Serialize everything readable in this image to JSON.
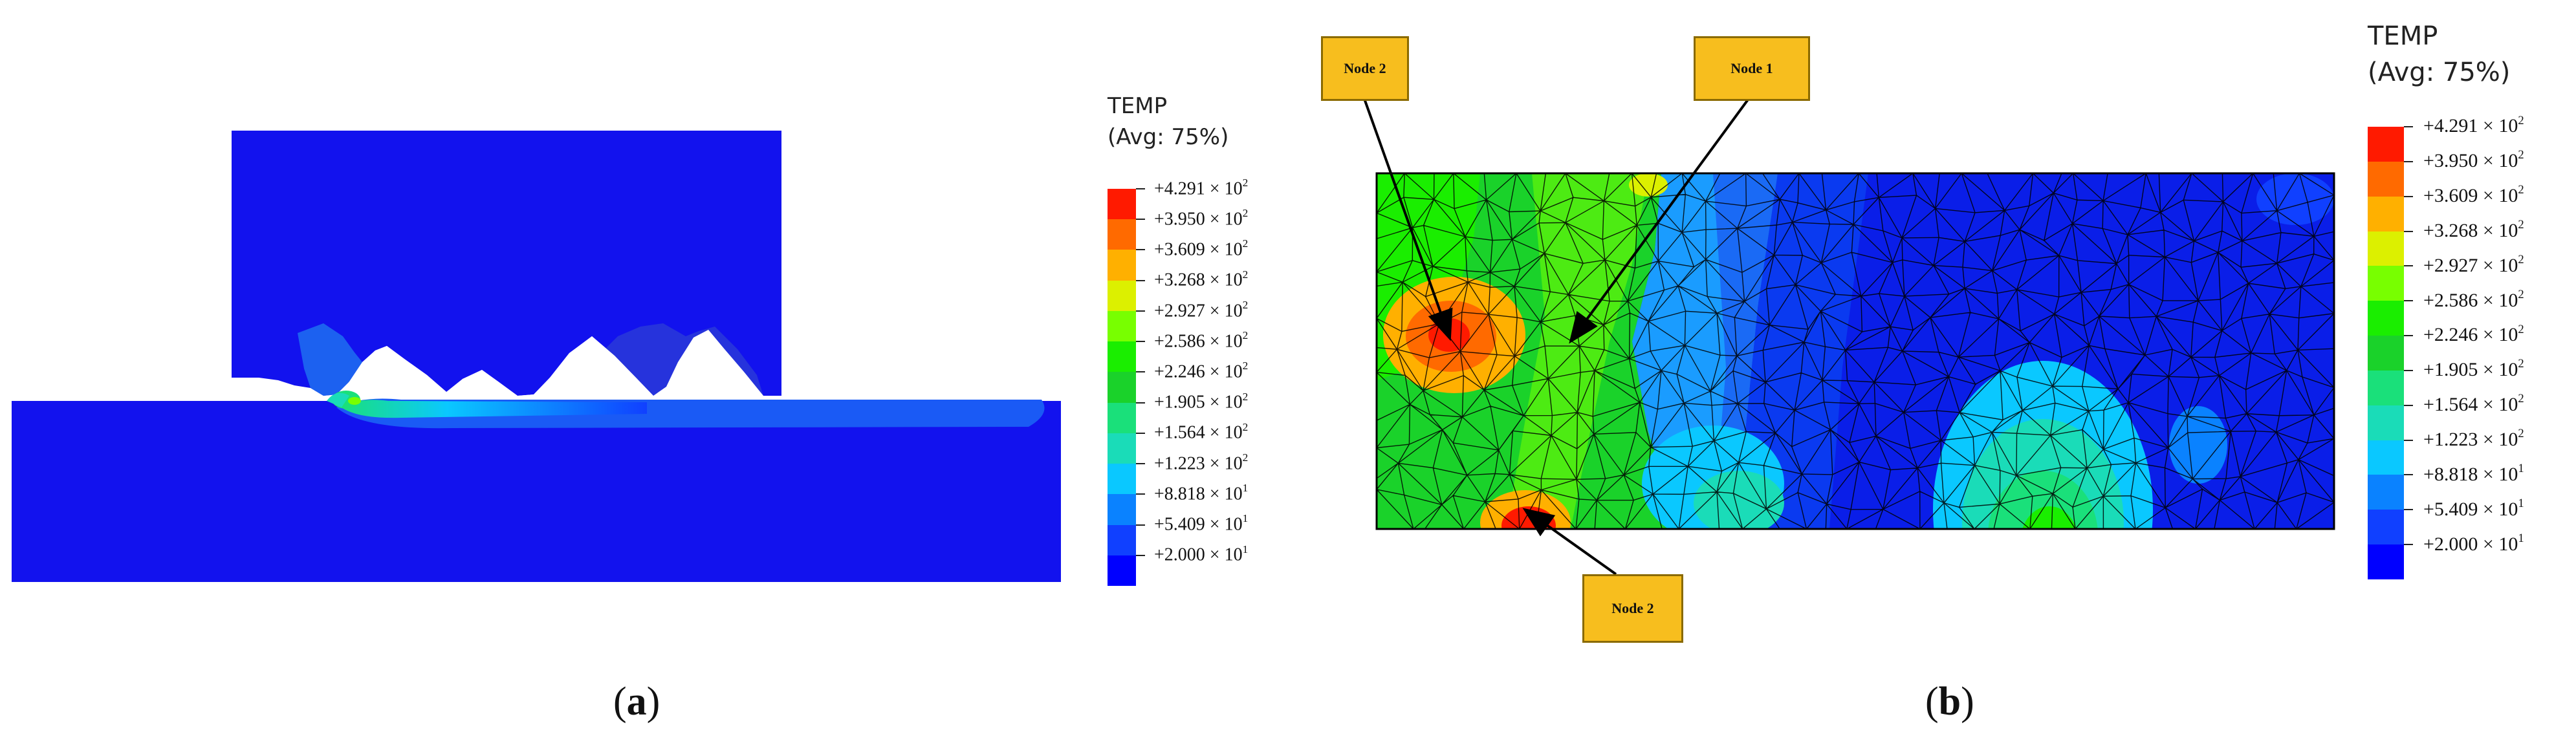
{
  "panel_a": {
    "caption_letter": "a",
    "legend": {
      "title_line1": "TEMP",
      "title_line2": "(Avg: 75%)",
      "colors": [
        "#ff1a00",
        "#ff6a00",
        "#ffb000",
        "#dcf000",
        "#78ff00",
        "#1aee00",
        "#1ad22a",
        "#1ae07a",
        "#1adcb8",
        "#0ac8ff",
        "#0a82ff",
        "#1040ff",
        "#0000ff"
      ],
      "ticks": [
        {
          "mant": "+4.291",
          "exp": "2"
        },
        {
          "mant": "+3.950",
          "exp": "2"
        },
        {
          "mant": "+3.609",
          "exp": "2"
        },
        {
          "mant": "+3.268",
          "exp": "2"
        },
        {
          "mant": "+2.927",
          "exp": "2"
        },
        {
          "mant": "+2.586",
          "exp": "2"
        },
        {
          "mant": "+2.246",
          "exp": "2"
        },
        {
          "mant": "+1.905",
          "exp": "2"
        },
        {
          "mant": "+1.564",
          "exp": "2"
        },
        {
          "mant": "+1.223",
          "exp": "2"
        },
        {
          "mant": "+8.818",
          "exp": "1"
        },
        {
          "mant": "+5.409",
          "exp": "1"
        },
        {
          "mant": "+2.000",
          "exp": "1"
        }
      ]
    }
  },
  "panel_b": {
    "caption_letter": "b",
    "callouts": {
      "node2_top": "Node 2",
      "node1": "Node 1",
      "node2_bottom": "Node 2"
    },
    "legend": {
      "title_line1": "TEMP",
      "title_line2": "(Avg: 75%)",
      "colors": [
        "#ff1a00",
        "#ff6a00",
        "#ffb000",
        "#dcf000",
        "#78ff00",
        "#1aee00",
        "#1ad22a",
        "#1ae07a",
        "#1adcb8",
        "#0ac8ff",
        "#0a82ff",
        "#1040ff",
        "#0000ff"
      ],
      "ticks": [
        {
          "mant": "+4.291",
          "exp": "2"
        },
        {
          "mant": "+3.950",
          "exp": "2"
        },
        {
          "mant": "+3.609",
          "exp": "2"
        },
        {
          "mant": "+3.268",
          "exp": "2"
        },
        {
          "mant": "+2.927",
          "exp": "2"
        },
        {
          "mant": "+2.586",
          "exp": "2"
        },
        {
          "mant": "+2.246",
          "exp": "2"
        },
        {
          "mant": "+1.905",
          "exp": "2"
        },
        {
          "mant": "+1.564",
          "exp": "2"
        },
        {
          "mant": "+1.223",
          "exp": "2"
        },
        {
          "mant": "+8.818",
          "exp": "1"
        },
        {
          "mant": "+5.409",
          "exp": "1"
        },
        {
          "mant": "+2.000",
          "exp": "1"
        }
      ]
    }
  }
}
